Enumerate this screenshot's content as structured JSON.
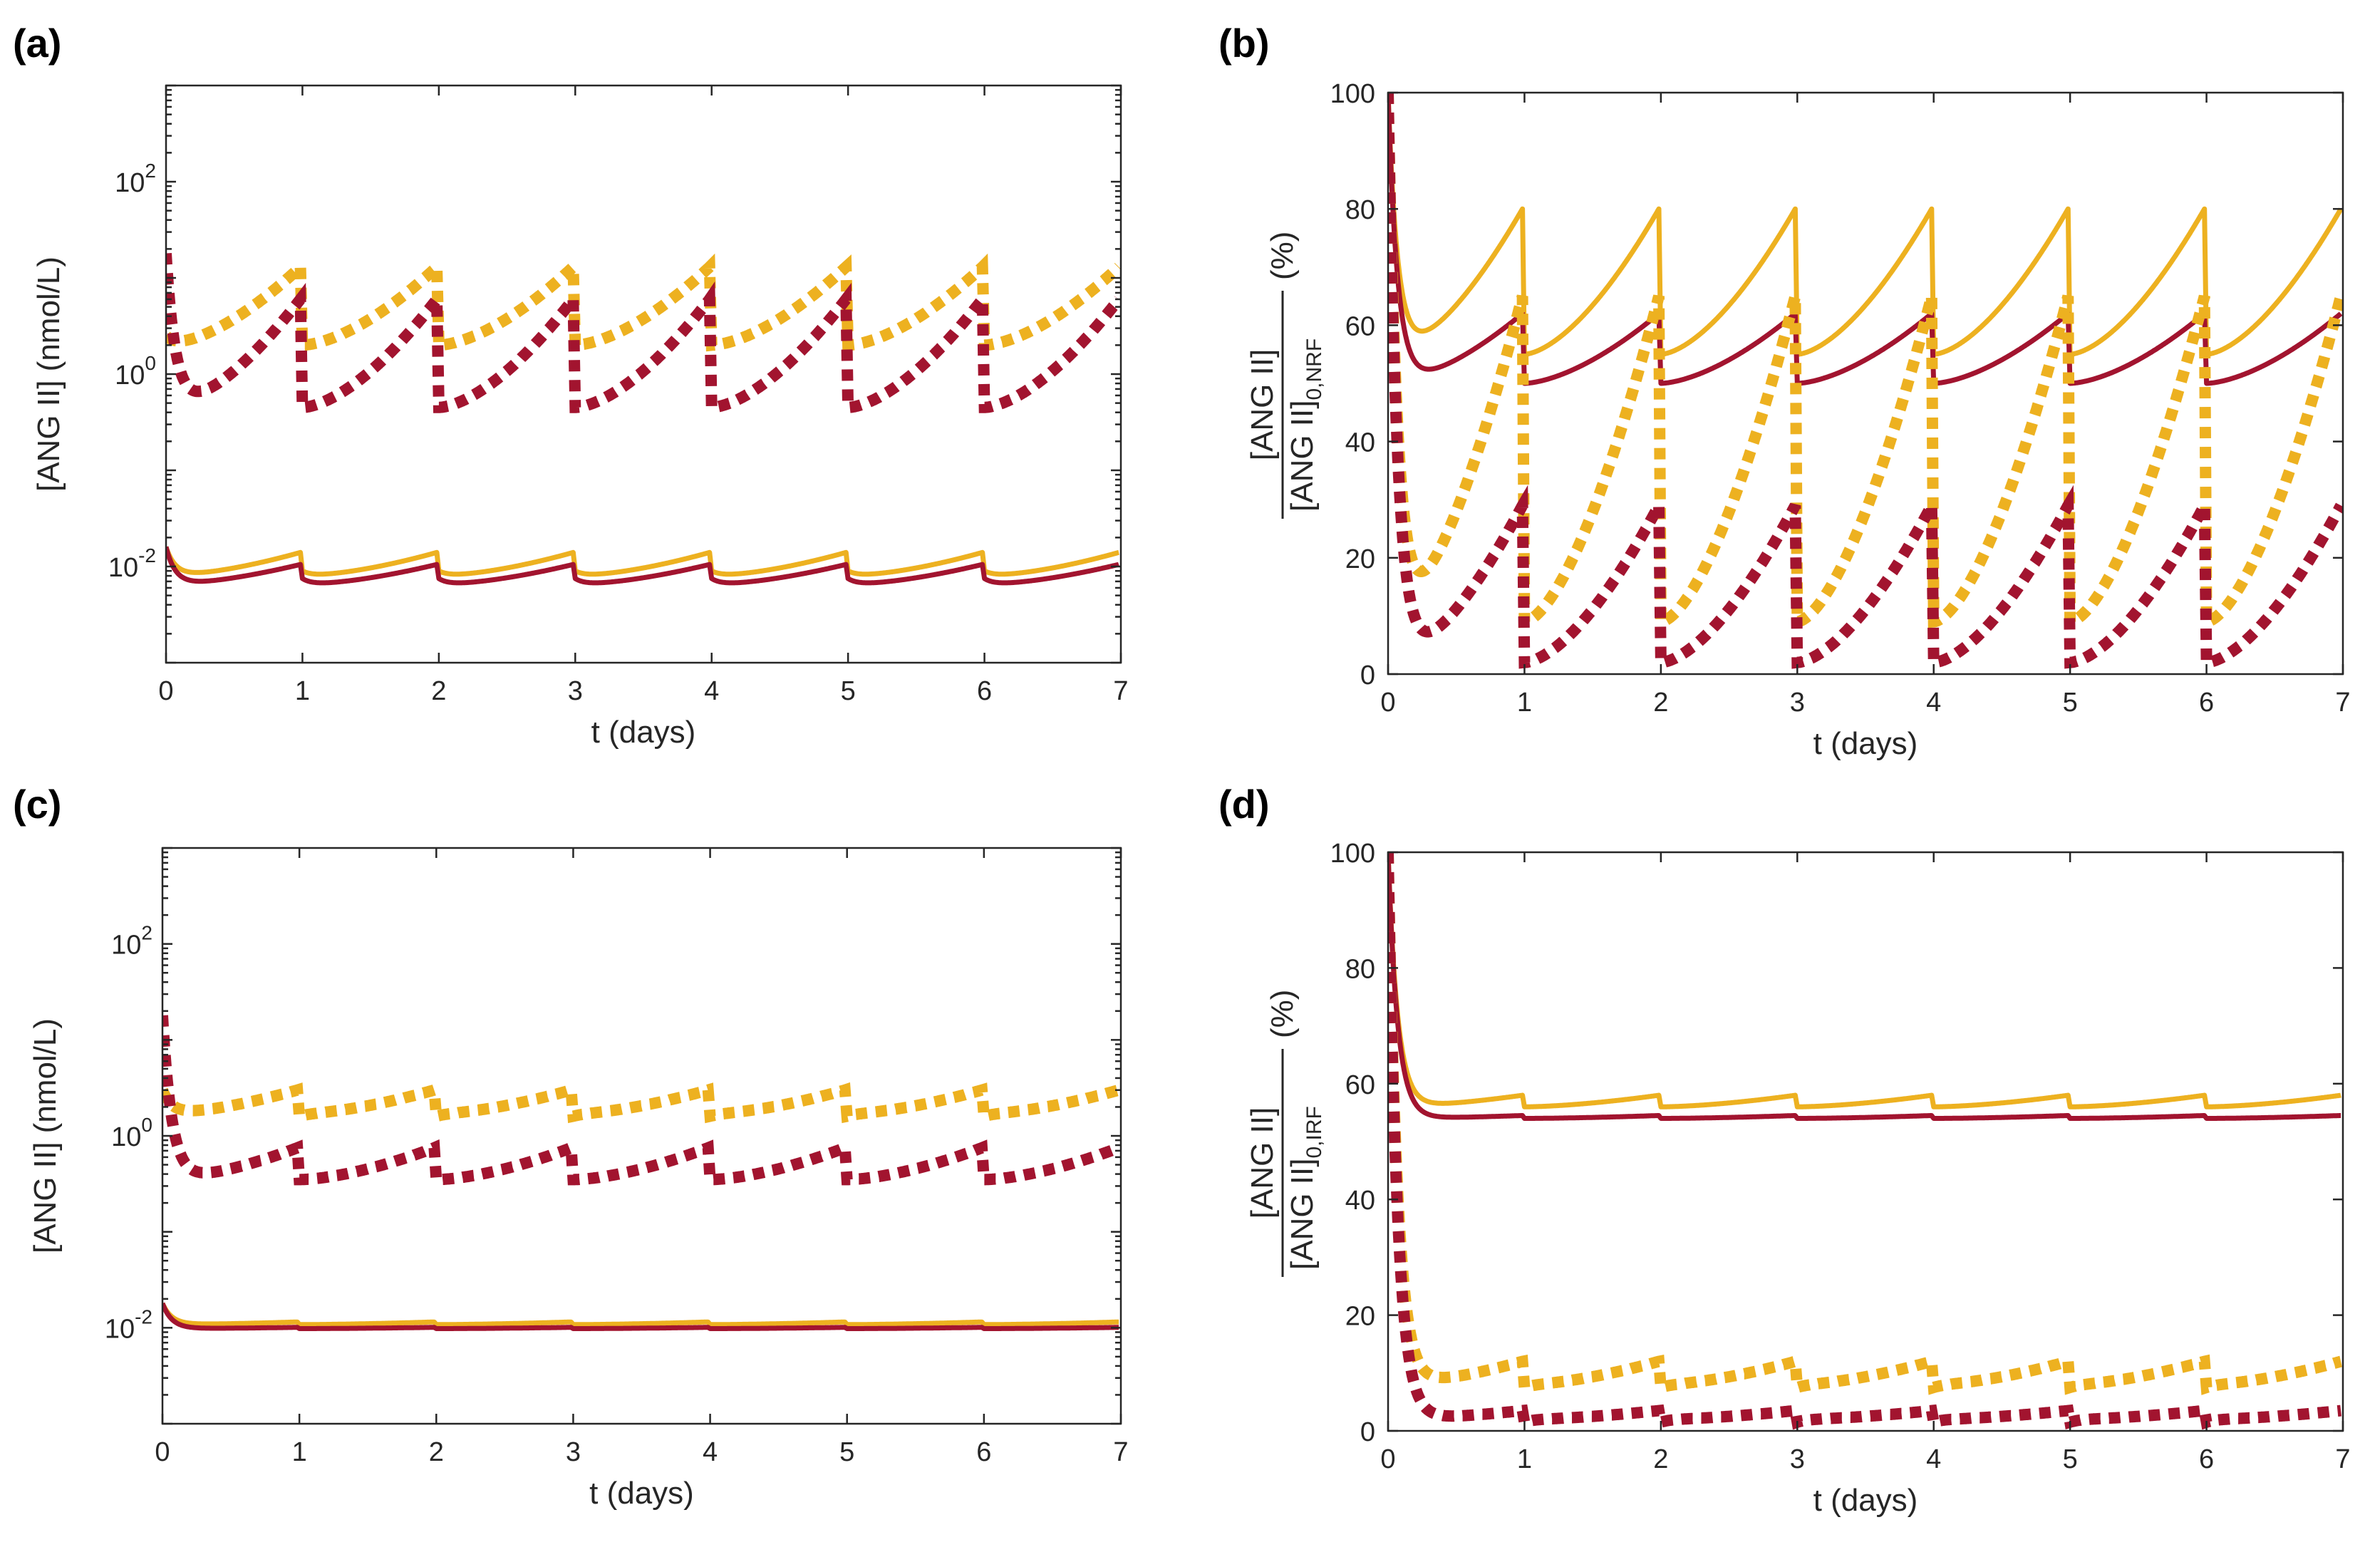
{
  "figure": {
    "background": "#ffffff"
  },
  "colors": {
    "orange": "#EDB120",
    "red": "#A2142F",
    "axis": "#262626"
  },
  "chart_data": [
    {
      "panel": "(a)",
      "type": "line",
      "xscale": "linear",
      "yscale": "log",
      "xlabel": "t (days)",
      "ylabel": "[ANG II] (nmol/L)",
      "xlim": [
        0,
        7
      ],
      "ylim": [
        0.001,
        1000
      ],
      "xticks": [
        0,
        1,
        2,
        3,
        4,
        5,
        6,
        7
      ],
      "yticks": [
        {
          "value": 0.01,
          "base": "10",
          "exp": "-2"
        },
        {
          "value": 1,
          "base": "10",
          "exp": "0"
        },
        {
          "value": 100,
          "base": "10",
          "exp": "2"
        }
      ],
      "series": [
        {
          "name": "orange-solid",
          "color": "orange",
          "style": "solid",
          "initial": 0.016,
          "trough": 0.008,
          "pre_dose": 0.014,
          "post_drop": 0.009
        },
        {
          "name": "red-solid",
          "color": "red",
          "style": "solid",
          "initial": 0.016,
          "trough": 0.0065,
          "pre_dose": 0.0105,
          "post_drop": 0.0075
        },
        {
          "name": "orange-dotted",
          "color": "orange",
          "style": "dotted",
          "initial": 2.5,
          "trough": 2.0,
          "pre_dose": 13,
          "post_drop": 2.0
        },
        {
          "name": "red-dotted",
          "color": "red",
          "style": "dotted",
          "initial": 18,
          "trough": 0.45,
          "pre_dose": 6,
          "post_drop": 0.45
        }
      ]
    },
    {
      "panel": "(b)",
      "type": "line",
      "xscale": "linear",
      "yscale": "linear",
      "xlabel": "t (days)",
      "ylabel": {
        "numerator": "[ANG II]",
        "denominator": "[ANG II]",
        "subscript": "0,NRF",
        "suffix": "(%)"
      },
      "xlim": [
        0,
        7
      ],
      "ylim": [
        0,
        100
      ],
      "xticks": [
        0,
        1,
        2,
        3,
        4,
        5,
        6,
        7
      ],
      "yticks": [
        0,
        20,
        40,
        60,
        80,
        100
      ],
      "series": [
        {
          "name": "orange-solid",
          "color": "orange",
          "style": "solid",
          "initial": 100,
          "trough": 55,
          "pre_dose": 80,
          "post_drop": 55
        },
        {
          "name": "red-solid",
          "color": "red",
          "style": "solid",
          "initial": 100,
          "trough": 50,
          "pre_dose": 62,
          "post_drop": 50
        },
        {
          "name": "orange-dotted",
          "color": "orange",
          "style": "dotted",
          "initial": 100,
          "trough": 9,
          "pre_dose": 65,
          "post_drop": 9
        },
        {
          "name": "red-dotted",
          "color": "red",
          "style": "dotted",
          "initial": 100,
          "trough": 2,
          "pre_dose": 29,
          "post_drop": 2
        }
      ]
    },
    {
      "panel": "(c)",
      "type": "line",
      "xscale": "linear",
      "yscale": "log",
      "xlabel": "t (days)",
      "ylabel": "[ANG II] (nmol/L)",
      "xlim": [
        0,
        7
      ],
      "ylim": [
        0.001,
        1000
      ],
      "xticks": [
        0,
        1,
        2,
        3,
        4,
        5,
        6,
        7
      ],
      "yticks": [
        {
          "value": 0.01,
          "base": "10",
          "exp": "-2"
        },
        {
          "value": 1,
          "base": "10",
          "exp": "0"
        },
        {
          "value": 100,
          "base": "10",
          "exp": "2"
        }
      ],
      "series": [
        {
          "name": "orange-solid",
          "color": "orange",
          "style": "solid",
          "initial": 0.018,
          "trough": 0.0108,
          "pre_dose": 0.0115,
          "post_drop": 0.0108
        },
        {
          "name": "red-solid",
          "color": "red",
          "style": "solid",
          "initial": 0.018,
          "trough": 0.0098,
          "pre_dose": 0.0101,
          "post_drop": 0.0098
        },
        {
          "name": "orange-dotted",
          "color": "orange",
          "style": "dotted",
          "initial": 3,
          "trough": 1.7,
          "pre_dose": 3.0,
          "post_drop": 1.6
        },
        {
          "name": "red-dotted",
          "color": "red",
          "style": "dotted",
          "initial": 18,
          "trough": 0.35,
          "pre_dose": 0.75,
          "post_drop": 0.35
        }
      ]
    },
    {
      "panel": "(d)",
      "type": "line",
      "xscale": "linear",
      "yscale": "linear",
      "xlabel": "t (days)",
      "ylabel": {
        "numerator": "[ANG II]",
        "denominator": "[ANG II]",
        "subscript": "0,IRF",
        "suffix": "(%)"
      },
      "xlim": [
        0,
        7
      ],
      "ylim": [
        0,
        100
      ],
      "xticks": [
        0,
        1,
        2,
        3,
        4,
        5,
        6,
        7
      ],
      "yticks": [
        0,
        20,
        40,
        60,
        80,
        100
      ],
      "series": [
        {
          "name": "orange-solid",
          "color": "orange",
          "style": "solid",
          "initial": 100,
          "trough": 56,
          "pre_dose": 58,
          "post_drop": 56
        },
        {
          "name": "red-solid",
          "color": "red",
          "style": "solid",
          "initial": 100,
          "trough": 54,
          "pre_dose": 54.5,
          "post_drop": 54
        },
        {
          "name": "orange-dotted",
          "color": "orange",
          "style": "dotted",
          "initial": 100,
          "trough": 8,
          "pre_dose": 12,
          "post_drop": 7.5
        },
        {
          "name": "red-dotted",
          "color": "red",
          "style": "dotted",
          "initial": 100,
          "trough": 2,
          "pre_dose": 3.5,
          "post_drop": 1.5
        }
      ]
    }
  ]
}
